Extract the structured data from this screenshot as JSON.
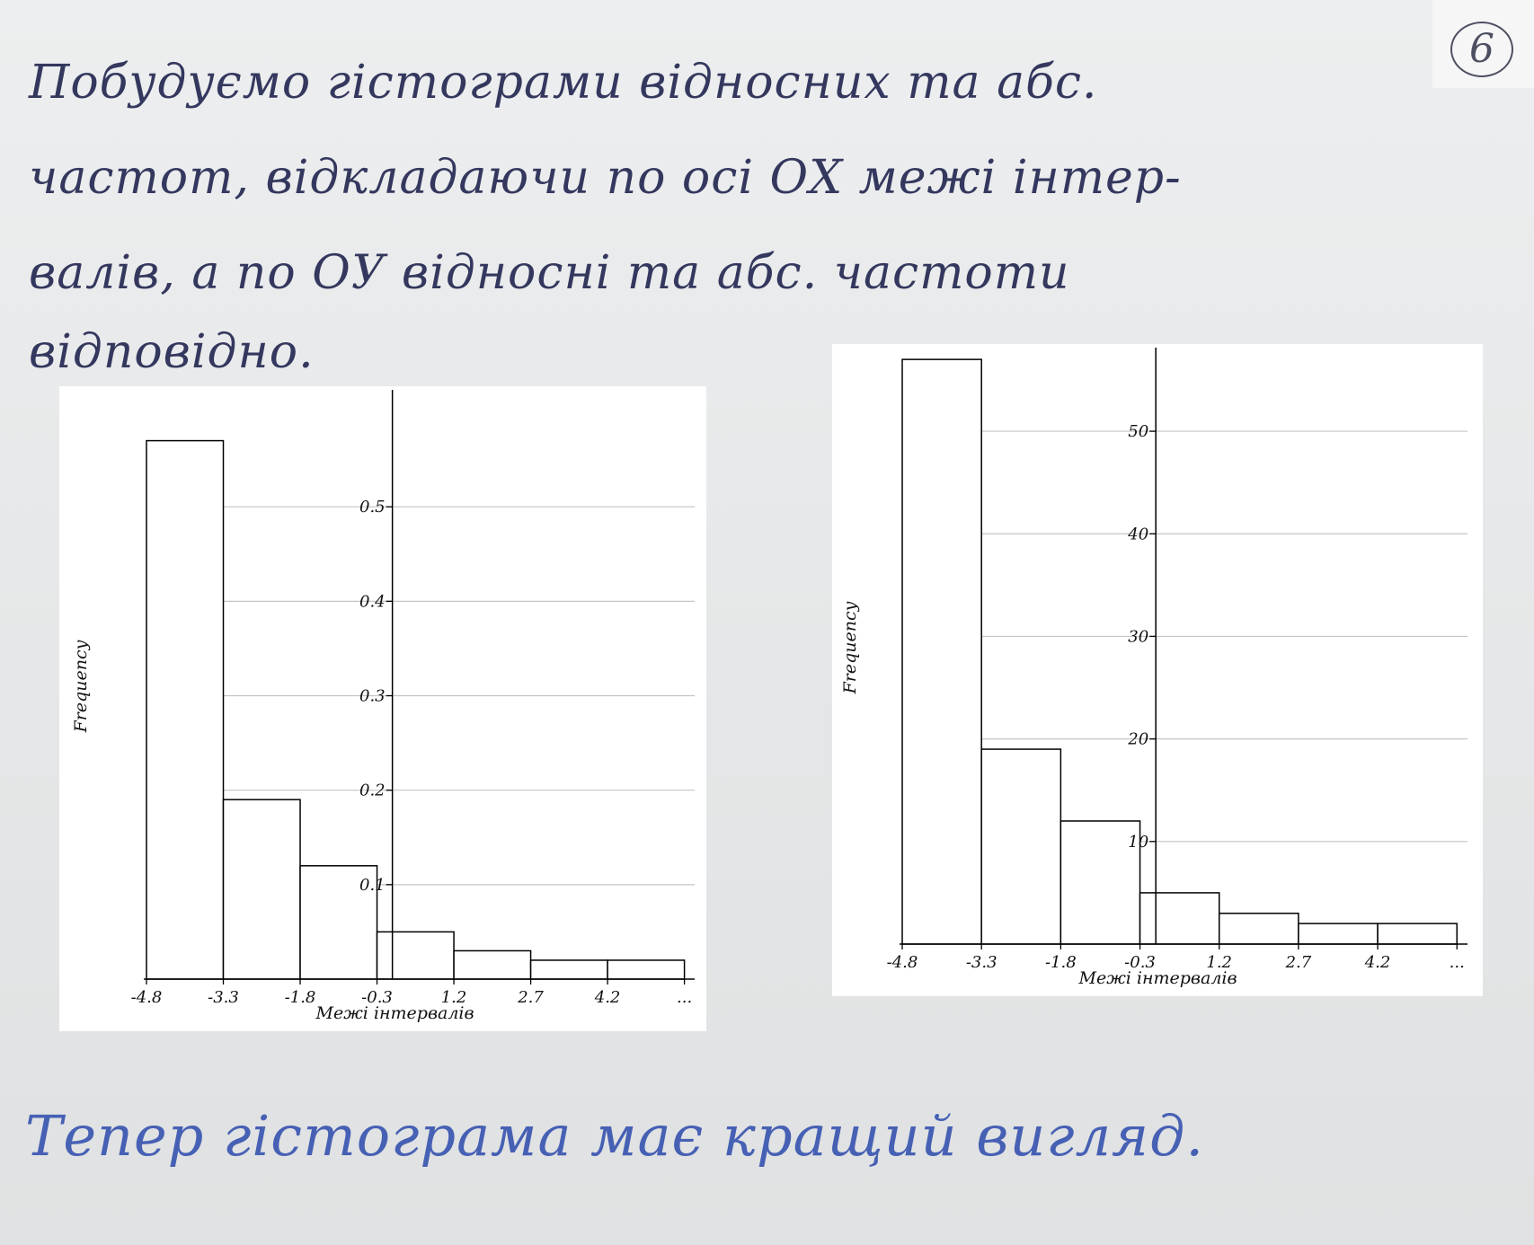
{
  "page_number": "6",
  "handwritten_text": {
    "line1": "Побудуємо гістограми відносних та абс.",
    "line2": "частот, відкладаючи по осі ОХ межі інтер-",
    "line3": "валів, а по ОУ відносні та абс. частоти",
    "line4": "відповідно.",
    "conclusion": "Тепер гістограма має кращий вигляд."
  },
  "chart_data": [
    {
      "type": "bar",
      "subtype": "histogram",
      "bin_edges": [
        -4.8,
        -3.3,
        -1.8,
        -0.3,
        1.2,
        2.7,
        4.2,
        5.7
      ],
      "values": [
        0.57,
        0.19,
        0.12,
        0.05,
        0.03,
        0.02,
        0.02
      ],
      "xtick_labels": [
        "-4.8",
        "-3.3",
        "-1.8",
        "-0.3",
        "1.2",
        "2.7",
        "4.2",
        "..."
      ],
      "yticks": [
        0.1,
        0.2,
        0.3,
        0.4,
        0.5
      ],
      "ytick_labels": [
        "0.1",
        "0.2",
        "0.3",
        "0.4",
        "0.5"
      ],
      "xlabel": "Межі інтервалів",
      "ylabel": "Frequency",
      "xlim": [
        -4.8,
        5.9
      ],
      "ylim": [
        0,
        0.62
      ],
      "y_axis_at_x": 0,
      "grid": "horizontal",
      "bar_fill": "#ffffff",
      "bar_stroke": "#000000"
    },
    {
      "type": "bar",
      "subtype": "histogram",
      "bin_edges": [
        -4.8,
        -3.3,
        -1.8,
        -0.3,
        1.2,
        2.7,
        4.2,
        5.7
      ],
      "values": [
        57,
        19,
        12,
        5,
        3,
        2,
        2
      ],
      "xtick_labels": [
        "-4.8",
        "-3.3",
        "-1.8",
        "-0.3",
        "1.2",
        "2.7",
        "4.2",
        "..."
      ],
      "yticks": [
        10,
        20,
        30,
        40,
        50
      ],
      "ytick_labels": [
        "10",
        "20",
        "30",
        "40",
        "50"
      ],
      "xlabel": "Межі інтервалів",
      "ylabel": "Frequency",
      "xlim": [
        -4.8,
        5.9
      ],
      "ylim": [
        0,
        57.8
      ],
      "y_axis_at_x": 0,
      "grid": "horizontal",
      "bar_fill": "#ffffff",
      "bar_stroke": "#000000"
    }
  ]
}
